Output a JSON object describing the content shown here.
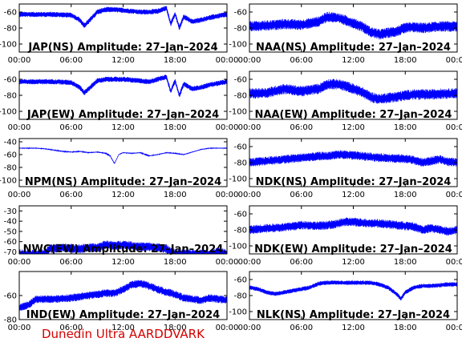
{
  "footer": "Dunedin Ultra AARDDVARK",
  "colors": {
    "series": "#0000ff",
    "axis": "#000000",
    "footer": "#d40000"
  },
  "chart_data": [
    {
      "type": "line",
      "title": "JAP(NS) Amplitude: 27–Jan–2024",
      "xticks": [
        "00:00",
        "06:00",
        "12:00",
        "18:00",
        "00:00"
      ],
      "yticks": [
        -60,
        -80,
        -100
      ],
      "ylim": [
        -110,
        -50
      ],
      "xlim": [
        0,
        24
      ],
      "x": [
        0,
        2,
        4,
        6,
        7,
        7.5,
        8,
        9,
        10,
        11,
        12,
        13,
        14,
        15,
        16,
        17,
        17.5,
        18,
        18.5,
        19,
        20,
        21,
        22,
        23,
        24
      ],
      "values": [
        -63,
        -63,
        -63,
        -64,
        -70,
        -77,
        -72,
        -60,
        -57,
        -57,
        -58,
        -59,
        -60,
        -60,
        -59,
        -55,
        -75,
        -62,
        -80,
        -66,
        -72,
        -70,
        -67,
        -65,
        -63
      ],
      "noise": 3
    },
    {
      "type": "line",
      "title": "NAA(NS) Amplitude: 27–Jan–2024",
      "xticks": [
        "00:00",
        "06:00",
        "12:00",
        "18:00",
        "00:00"
      ],
      "yticks": [
        -60,
        -80,
        -100
      ],
      "ylim": [
        -110,
        -50
      ],
      "xlim": [
        0,
        24
      ],
      "x": [
        0,
        2,
        4,
        6,
        8,
        9,
        10,
        11,
        12,
        13,
        14,
        15,
        16,
        17,
        18,
        19,
        20,
        21,
        22,
        23,
        24
      ],
      "values": [
        -78,
        -77,
        -75,
        -76,
        -72,
        -66,
        -67,
        -70,
        -74,
        -78,
        -85,
        -88,
        -86,
        -84,
        -80,
        -79,
        -80,
        -79,
        -78,
        -78,
        -78
      ],
      "noise": 6
    },
    {
      "type": "line",
      "title": "JAP(EW) Amplitude: 27–Jan–2024",
      "xticks": [
        "00:00",
        "06:00",
        "12:00",
        "18:00",
        "00:00"
      ],
      "yticks": [
        -60,
        -80,
        -100
      ],
      "ylim": [
        -110,
        -50
      ],
      "xlim": [
        0,
        24
      ],
      "x": [
        0,
        2,
        4,
        6,
        7,
        7.5,
        8,
        9,
        10,
        11,
        12,
        13,
        14,
        15,
        16,
        17,
        17.5,
        18,
        18.5,
        19,
        20,
        21,
        22,
        23,
        24
      ],
      "values": [
        -63,
        -63,
        -63,
        -64,
        -70,
        -77,
        -72,
        -62,
        -60,
        -60,
        -60,
        -61,
        -62,
        -63,
        -60,
        -57,
        -75,
        -62,
        -80,
        -66,
        -72,
        -70,
        -67,
        -65,
        -63
      ],
      "noise": 3
    },
    {
      "type": "line",
      "title": "NAA(EW) Amplitude: 27–Jan–2024",
      "xticks": [
        "00:00",
        "06:00",
        "12:00",
        "18:00",
        "00:00"
      ],
      "yticks": [
        -60,
        -80,
        -100
      ],
      "ylim": [
        -110,
        -50
      ],
      "xlim": [
        0,
        24
      ],
      "x": [
        0,
        2,
        4,
        6,
        8,
        9,
        10,
        11,
        12,
        13,
        14,
        15,
        16,
        17,
        18,
        19,
        20,
        21,
        22,
        23,
        24
      ],
      "values": [
        -78,
        -77,
        -72,
        -75,
        -72,
        -66,
        -66,
        -68,
        -72,
        -76,
        -82,
        -85,
        -83,
        -82,
        -80,
        -79,
        -79,
        -79,
        -78,
        -78,
        -77
      ],
      "noise": 6
    },
    {
      "type": "line",
      "title": "NPM(NS) Amplitude: 27–Jan–2024",
      "xticks": [
        "00:00",
        "06:00",
        "12:00",
        "18:00",
        "00:00"
      ],
      "yticks": [
        -40,
        -60,
        -80,
        -100
      ],
      "ylim": [
        -110,
        -35
      ],
      "xlim": [
        0,
        24
      ],
      "x": [
        0,
        1,
        2,
        3,
        4,
        5,
        6,
        7,
        8,
        9,
        10,
        10.5,
        11,
        11.5,
        12,
        13,
        14,
        15,
        16,
        17,
        18,
        19,
        20,
        21,
        22,
        23,
        24
      ],
      "values": [
        -50,
        -50,
        -50,
        -51,
        -53,
        -55,
        -56,
        -55,
        -57,
        -56,
        -58,
        -62,
        -74,
        -60,
        -57,
        -58,
        -57,
        -62,
        -60,
        -57,
        -58,
        -60,
        -56,
        -52,
        -50,
        -50,
        -50
      ],
      "noise": 0.6
    },
    {
      "type": "line",
      "title": "NDK(NS) Amplitude: 27–Jan–2024",
      "xticks": [
        "00:00",
        "06:00",
        "12:00",
        "18:00",
        "00:00"
      ],
      "yticks": [
        -60,
        -80,
        -100
      ],
      "ylim": [
        -110,
        -50
      ],
      "xlim": [
        0,
        24
      ],
      "x": [
        0,
        2,
        4,
        6,
        8,
        9,
        10,
        11,
        12,
        13,
        14,
        15,
        16,
        17,
        18,
        19,
        20,
        21,
        22,
        23,
        24
      ],
      "values": [
        -80,
        -78,
        -76,
        -74,
        -72,
        -72,
        -70,
        -70,
        -71,
        -72,
        -73,
        -74,
        -74,
        -75,
        -75,
        -77,
        -80,
        -78,
        -76,
        -79,
        -80
      ],
      "noise": 5
    },
    {
      "type": "line",
      "title": "NWC(EW) Amplitude: 27–Jan–2024",
      "xticks": [
        "00:00",
        "06:00",
        "12:00",
        "18:00",
        "00:00"
      ],
      "yticks": [
        -30,
        -40,
        -50,
        -60,
        -70
      ],
      "ylim": [
        -72,
        -25
      ],
      "xlim": [
        0,
        24
      ],
      "x": [
        0,
        3,
        3.5,
        5,
        7,
        8,
        9,
        10,
        11,
        12,
        13,
        14,
        15,
        16,
        17,
        18,
        19,
        20,
        21,
        22,
        23,
        24
      ],
      "values": [
        -72,
        -72,
        -67,
        -66,
        -67,
        -66,
        -66,
        -63,
        -64,
        -63,
        -64,
        -65,
        -65,
        -66,
        -67,
        -72,
        -72,
        -72,
        -72,
        -72,
        -70,
        -72
      ],
      "noise": 4
    },
    {
      "type": "line",
      "title": "NDK(EW) Amplitude: 27–Jan–2024",
      "xticks": [
        "00:00",
        "06:00",
        "12:00",
        "18:00",
        "00:00"
      ],
      "yticks": [
        -60,
        -80,
        -100
      ],
      "ylim": [
        -110,
        -50
      ],
      "xlim": [
        0,
        24
      ],
      "x": [
        0,
        2,
        4,
        6,
        8,
        9,
        10,
        11,
        12,
        13,
        14,
        15,
        16,
        17,
        18,
        19,
        20,
        21,
        22,
        23,
        24
      ],
      "values": [
        -80,
        -78,
        -77,
        -74,
        -75,
        -74,
        -73,
        -70,
        -70,
        -71,
        -72,
        -72,
        -73,
        -74,
        -75,
        -76,
        -80,
        -78,
        -80,
        -82,
        -80
      ],
      "noise": 5
    },
    {
      "type": "line",
      "title": "IND(EW) Amplitude: 27–Jan–2024",
      "xticks": [
        "00:00",
        "06:00",
        "12:00",
        "18:00",
        "00:00"
      ],
      "yticks": [
        -60,
        -80
      ],
      "ylim": [
        -80,
        -40
      ],
      "xlim": [
        0,
        24
      ],
      "x": [
        0,
        1,
        2,
        4,
        6,
        8,
        10,
        11,
        12,
        13,
        14,
        15,
        16,
        17,
        18,
        19,
        20,
        21,
        22,
        23,
        24
      ],
      "values": [
        -70,
        -68,
        -63,
        -63,
        -62,
        -60,
        -58,
        -58,
        -55,
        -51,
        -50,
        -52,
        -55,
        -57,
        -59,
        -62,
        -63,
        -64,
        -62,
        -63,
        -64
      ],
      "noise": 3
    },
    {
      "type": "line",
      "title": "NLK(NS) Amplitude: 27–Jan–2024",
      "xticks": [
        "00:00",
        "06:00",
        "12:00",
        "18:00",
        "00:00"
      ],
      "yticks": [
        -60,
        -80,
        -100
      ],
      "ylim": [
        -110,
        -50
      ],
      "xlim": [
        0,
        24
      ],
      "x": [
        0,
        1,
        2,
        3,
        4,
        5,
        6,
        7,
        8,
        9,
        10,
        11,
        12,
        13,
        14,
        15,
        16,
        17,
        17.5,
        18,
        19,
        20,
        21,
        22,
        23,
        24
      ],
      "values": [
        -70,
        -72,
        -76,
        -78,
        -76,
        -74,
        -72,
        -70,
        -65,
        -64,
        -64,
        -64,
        -64,
        -64,
        -64,
        -66,
        -70,
        -78,
        -84,
        -76,
        -70,
        -68,
        -68,
        -67,
        -66,
        -66
      ],
      "noise": 2.5
    }
  ]
}
